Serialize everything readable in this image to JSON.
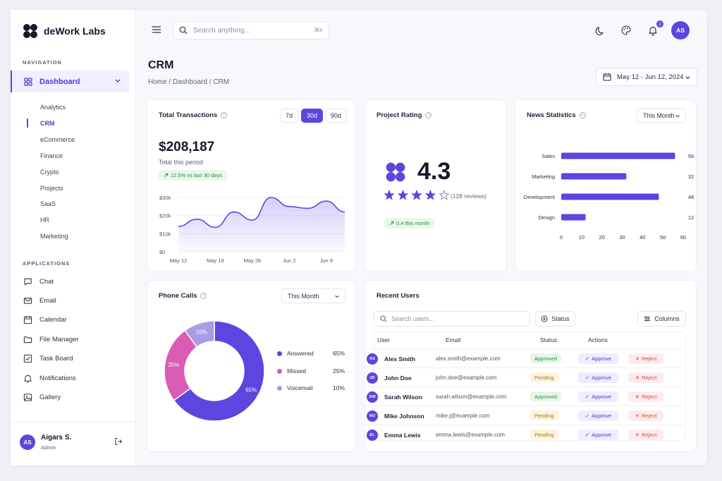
{
  "brand": {
    "name": "deWork Labs"
  },
  "sidebar": {
    "nav_title": "NAVIGATION",
    "dashboard_label": "Dashboard",
    "sub_items": [
      "Analytics",
      "CRM",
      "eCommerce",
      "Finance",
      "Crypto",
      "Projects",
      "SaaS",
      "HR",
      "Marketing"
    ],
    "active_sub": "CRM",
    "apps_title": "APPLICATIONS",
    "apps": [
      {
        "label": "Chat",
        "icon": "chat-icon"
      },
      {
        "label": "Email",
        "icon": "mail-icon"
      },
      {
        "label": "Calendar",
        "icon": "calendar-icon"
      },
      {
        "label": "File Manager",
        "icon": "folder-icon"
      },
      {
        "label": "Task Board",
        "icon": "task-board-icon"
      },
      {
        "label": "Notifications",
        "icon": "bell-icon"
      },
      {
        "label": "Gallery",
        "icon": "image-icon"
      }
    ],
    "user": {
      "initials": "AS",
      "name": "Aigars S.",
      "role": "Admin"
    }
  },
  "topbar": {
    "search_placeholder": "Search anything...",
    "shortcut": "⌘K",
    "notification_count": "2",
    "avatar_initials": "AS"
  },
  "page": {
    "title": "CRM",
    "breadcrumb": "Home / Dashboard / CRM",
    "date_range": "May 12 - Jun 12, 2024"
  },
  "transactions": {
    "title": "Total Transactions",
    "ranges": [
      "7d",
      "30d",
      "90d"
    ],
    "active_range": "30d",
    "total": "$208,187",
    "subtitle": "Total this period",
    "change": "12.5% vs last 30 days",
    "y_ticks": [
      "$30k",
      "$20k",
      "$10k",
      "$0"
    ],
    "x_ticks": [
      "May 12",
      "May 19",
      "May 26",
      "Jun 2",
      "Jun 9"
    ]
  },
  "rating": {
    "title": "Project Rating",
    "score": "4.3",
    "stars_value": 4.3,
    "reviews": "(128 reviews)",
    "change": "0.4 this month"
  },
  "news": {
    "title": "News Statistics",
    "filter": "This Month"
  },
  "phone": {
    "title": "Phone Calls",
    "filter": "This Month",
    "legend": [
      {
        "label": "Answered",
        "value": "65%",
        "color": "#5b46e0"
      },
      {
        "label": "Missed",
        "value": "25%",
        "color": "#d95bb3"
      },
      {
        "label": "Voicemail",
        "value": "10%",
        "color": "#a99be6"
      }
    ]
  },
  "users": {
    "title": "Recent Users",
    "search_placeholder": "Search users...",
    "status_button": "Status",
    "columns_button": "Columns",
    "headers": [
      "User",
      "Email",
      "Status",
      "Actions"
    ],
    "approve_label": "Approve",
    "reject_label": "Reject",
    "rows": [
      {
        "initials": "AS",
        "name": "Alex Smith",
        "email": "alex.smith@example.com",
        "status": "Approved"
      },
      {
        "initials": "JD",
        "name": "John Doe",
        "email": "john.doe@example.com",
        "status": "Pending"
      },
      {
        "initials": "SW",
        "name": "Sarah Wilson",
        "email": "sarah.wilson@example.com",
        "status": "Approved"
      },
      {
        "initials": "MJ",
        "name": "Mike Johnson",
        "email": "mike.j@example.com",
        "status": "Pending"
      },
      {
        "initials": "EL",
        "name": "Emma Lewis",
        "email": "emma.lewis@example.com",
        "status": "Pending"
      }
    ]
  },
  "chart_data": [
    {
      "type": "area",
      "title": "Total Transactions",
      "x": [
        "May 12",
        "May 15",
        "May 19",
        "May 22",
        "May 26",
        "May 29",
        "Jun 2",
        "Jun 5",
        "Jun 9",
        "Jun 12"
      ],
      "values": [
        14000,
        18000,
        13500,
        22000,
        17500,
        30000,
        25000,
        24000,
        28000,
        22000
      ],
      "ylim": [
        0,
        30000
      ],
      "y_ticks": [
        "$30k",
        "$20k",
        "$10k",
        "$0"
      ],
      "x_ticks": [
        "May 12",
        "May 19",
        "May 26",
        "Jun 2",
        "Jun 9"
      ]
    },
    {
      "type": "bar",
      "title": "News Statistics",
      "orientation": "horizontal",
      "categories": [
        "Sales",
        "Marketing",
        "Development",
        "Design"
      ],
      "values": [
        56,
        32,
        48,
        12
      ],
      "xlim": [
        0,
        60
      ],
      "x_ticks": [
        "0",
        "10",
        "20",
        "30",
        "40",
        "50",
        "60"
      ]
    },
    {
      "type": "pie",
      "title": "Phone Calls",
      "donut": true,
      "categories": [
        "Answered",
        "Missed",
        "Voicemail"
      ],
      "values": [
        65,
        25,
        10
      ],
      "labels": [
        "65%",
        "25%",
        "10%"
      ],
      "colors": [
        "#5b46e0",
        "#d95bb3",
        "#a99be6"
      ]
    }
  ]
}
